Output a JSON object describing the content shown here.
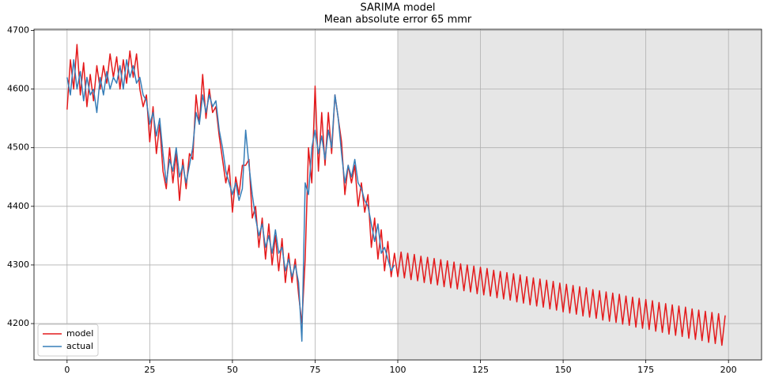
{
  "chart_data": {
    "type": "line",
    "title": "SARIMA model",
    "subtitle": "Mean absolute error 65 mmr",
    "x": [
      0,
      1,
      2,
      3,
      4,
      5,
      6,
      7,
      8,
      9,
      10,
      11,
      12,
      13,
      14,
      15,
      16,
      17,
      18,
      19,
      20,
      21,
      22,
      23,
      24,
      25,
      26,
      27,
      28,
      29,
      30,
      31,
      32,
      33,
      34,
      35,
      36,
      37,
      38,
      39,
      40,
      41,
      42,
      43,
      44,
      45,
      46,
      47,
      48,
      49,
      50,
      51,
      52,
      53,
      54,
      55,
      56,
      57,
      58,
      59,
      60,
      61,
      62,
      63,
      64,
      65,
      66,
      67,
      68,
      69,
      70,
      71,
      72,
      73,
      74,
      75,
      76,
      77,
      78,
      79,
      80,
      81,
      82,
      83,
      84,
      85,
      86,
      87,
      88,
      89,
      90,
      91,
      92,
      93,
      94,
      95,
      96,
      97,
      98,
      99,
      100,
      101,
      102,
      103,
      104,
      105,
      106,
      107,
      108,
      109,
      110,
      111,
      112,
      113,
      114,
      115,
      116,
      117,
      118,
      119,
      120,
      121,
      122,
      123,
      124,
      125,
      126,
      127,
      128,
      129,
      130,
      131,
      132,
      133,
      134,
      135,
      136,
      137,
      138,
      139,
      140,
      141,
      142,
      143,
      144,
      145,
      146,
      147,
      148,
      149,
      150,
      151,
      152,
      153,
      154,
      155,
      156,
      157,
      158,
      159,
      160,
      161,
      162,
      163,
      164,
      165,
      166,
      167,
      168,
      169,
      170,
      171,
      172,
      173,
      174,
      175,
      176,
      177,
      178,
      179,
      180,
      181,
      182,
      183,
      184,
      185,
      186,
      187,
      188,
      189,
      190,
      191,
      192,
      193,
      194,
      195,
      196,
      197,
      198,
      199
    ],
    "series": [
      {
        "name": "model",
        "color": "#e41a1c",
        "values": [
          4565,
          4650,
          4600,
          4676,
          4590,
          4645,
          4570,
          4625,
          4580,
          4640,
          4600,
          4640,
          4610,
          4660,
          4620,
          4655,
          4600,
          4650,
          4610,
          4665,
          4620,
          4660,
          4600,
          4570,
          4590,
          4510,
          4570,
          4490,
          4540,
          4460,
          4430,
          4500,
          4440,
          4490,
          4410,
          4480,
          4430,
          4490,
          4480,
          4590,
          4540,
          4625,
          4550,
          4600,
          4560,
          4570,
          4520,
          4480,
          4440,
          4470,
          4390,
          4450,
          4420,
          4470,
          4470,
          4480,
          4380,
          4400,
          4330,
          4380,
          4310,
          4370,
          4300,
          4350,
          4290,
          4345,
          4270,
          4320,
          4270,
          4310,
          4250,
          4200,
          4310,
          4500,
          4440,
          4605,
          4460,
          4560,
          4470,
          4560,
          4490,
          4590,
          4550,
          4510,
          4420,
          4470,
          4440,
          4470,
          4400,
          4440,
          4390,
          4420,
          4330,
          4380,
          4310,
          4360,
          4290,
          4340,
          4280,
          4320,
          4280,
          4322,
          4278,
          4320,
          4275,
          4318,
          4273,
          4315,
          4270,
          4313,
          4268,
          4311,
          4266,
          4309,
          4263,
          4307,
          4261,
          4305,
          4259,
          4302,
          4256,
          4300,
          4254,
          4298,
          4251,
          4296,
          4249,
          4294,
          4247,
          4291,
          4244,
          4289,
          4242,
          4287,
          4240,
          4285,
          4237,
          4283,
          4235,
          4280,
          4232,
          4278,
          4230,
          4276,
          4228,
          4274,
          4225,
          4272,
          4223,
          4269,
          4220,
          4267,
          4218,
          4265,
          4216,
          4263,
          4213,
          4261,
          4211,
          4258,
          4209,
          4256,
          4206,
          4254,
          4204,
          4252,
          4202,
          4250,
          4199,
          4247,
          4197,
          4245,
          4194,
          4243,
          4192,
          4241,
          4190,
          4239,
          4187,
          4236,
          4185,
          4234,
          4182,
          4232,
          4180,
          4230,
          4178,
          4228,
          4175,
          4225,
          4173,
          4223,
          4171,
          4221,
          4168,
          4219,
          4166,
          4217,
          4163,
          4214
        ]
      },
      {
        "name": "actual",
        "color": "#377eb8",
        "values": [
          4620,
          4590,
          4650,
          4600,
          4630,
          4580,
          4620,
          4590,
          4600,
          4560,
          4620,
          4590,
          4630,
          4600,
          4620,
          4610,
          4640,
          4600,
          4650,
          4620,
          4640,
          4610,
          4620,
          4590,
          4580,
          4540,
          4560,
          4520,
          4550,
          4490,
          4440,
          4480,
          4460,
          4500,
          4450,
          4470,
          4440,
          4470,
          4500,
          4560,
          4540,
          4590,
          4560,
          4590,
          4570,
          4580,
          4530,
          4500,
          4460,
          4440,
          4420,
          4440,
          4410,
          4430,
          4530,
          4470,
          4420,
          4380,
          4350,
          4370,
          4330,
          4350,
          4320,
          4360,
          4320,
          4330,
          4290,
          4310,
          4280,
          4300,
          4270,
          4170,
          4440,
          4420,
          4500,
          4530,
          4490,
          4520,
          4480,
          4530,
          4500,
          4590,
          4550,
          4490,
          4440,
          4470,
          4450,
          4480,
          4440,
          4430,
          4410,
          4400,
          4370,
          4340,
          4370,
          4320,
          4330,
          4310,
          4290,
          4300,
          null,
          null,
          null,
          null,
          null,
          null,
          null,
          null,
          null,
          null,
          null,
          null,
          null,
          null,
          null,
          null,
          null,
          null,
          null,
          null,
          null,
          null,
          null,
          null,
          null,
          null,
          null,
          null,
          null,
          null,
          null,
          null,
          null,
          null,
          null,
          null,
          null,
          null,
          null,
          null,
          null,
          null,
          null,
          null,
          null,
          null,
          null,
          null,
          null,
          null,
          null,
          null,
          null,
          null,
          null,
          null,
          null,
          null,
          null,
          null,
          null,
          null,
          null,
          null,
          null,
          null,
          null,
          null,
          null,
          null,
          null,
          null,
          null,
          null,
          null,
          null,
          null,
          null,
          null,
          null,
          null,
          null,
          null,
          null,
          null,
          null,
          null,
          null,
          null,
          null,
          null,
          null,
          null,
          null,
          null,
          null,
          null,
          null,
          null,
          null
        ]
      }
    ],
    "shade_from": 100,
    "shade_color": "#e6e6e6",
    "xlim": [
      -10,
      210
    ],
    "xticks": [
      0,
      25,
      50,
      75,
      100,
      125,
      150,
      175,
      200
    ],
    "ylim": [
      4138,
      4702
    ],
    "yticks": [
      4200,
      4300,
      4400,
      4500,
      4600,
      4700
    ],
    "grid": true,
    "legend": "lower left"
  }
}
